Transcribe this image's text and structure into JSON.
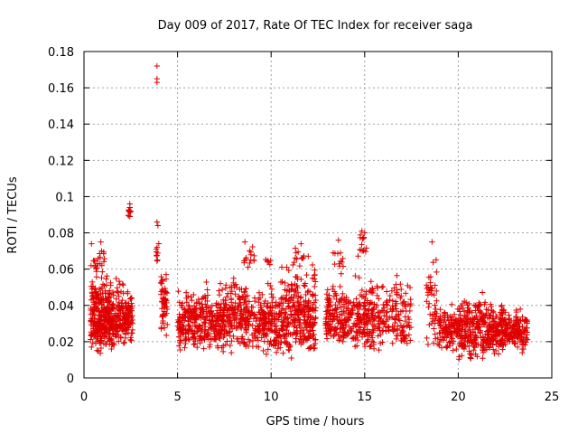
{
  "chart_data": {
    "type": "scatter",
    "title": "Day 009 of 2017, Rate Of TEC Index for receiver saga",
    "xlabel": "GPS time / hours",
    "ylabel": "ROTI / TECUs",
    "xlim": [
      0,
      25
    ],
    "ylim": [
      0,
      0.18
    ],
    "x_ticks": [
      "0",
      "5",
      "10",
      "15",
      "20",
      "25"
    ],
    "y_ticks": [
      "0",
      "0.02",
      "0.04",
      "0.06",
      "0.08",
      "0.1",
      "0.12",
      "0.14",
      "0.16",
      "0.18"
    ],
    "grid": true,
    "marker": "+",
    "color": "#e00000",
    "clusters": [
      {
        "x": [
          0.35,
          1.6
        ],
        "y": [
          0.012,
          0.062
        ],
        "n": 330
      },
      {
        "x": [
          0.35,
          0.9
        ],
        "y": [
          0.055,
          0.074
        ],
        "n": 14
      },
      {
        "x": [
          0.9,
          1.1
        ],
        "y": [
          0.055,
          0.075
        ],
        "n": 6
      },
      {
        "x": [
          1.6,
          2.6
        ],
        "y": [
          0.015,
          0.058
        ],
        "n": 160
      },
      {
        "x": [
          2.35,
          2.55
        ],
        "y": [
          0.088,
          0.097
        ],
        "n": 7
      },
      {
        "x": [
          3.85,
          4.05
        ],
        "y": [
          0.062,
          0.088
        ],
        "n": 9
      },
      {
        "x": [
          4.1,
          4.45
        ],
        "y": [
          0.02,
          0.07
        ],
        "n": 55
      },
      {
        "x": [
          5.0,
          6.3
        ],
        "y": [
          0.013,
          0.052
        ],
        "n": 170
      },
      {
        "x": [
          6.3,
          7.8
        ],
        "y": [
          0.012,
          0.058
        ],
        "n": 200
      },
      {
        "x": [
          7.8,
          9.5
        ],
        "y": [
          0.012,
          0.06
        ],
        "n": 200
      },
      {
        "x": [
          8.5,
          9.1
        ],
        "y": [
          0.058,
          0.075
        ],
        "n": 14
      },
      {
        "x": [
          9.5,
          10.5
        ],
        "y": [
          0.01,
          0.058
        ],
        "n": 140
      },
      {
        "x": [
          9.6,
          10.0
        ],
        "y": [
          0.062,
          0.071
        ],
        "n": 6
      },
      {
        "x": [
          10.5,
          12.4
        ],
        "y": [
          0.009,
          0.07
        ],
        "n": 300
      },
      {
        "x": [
          11.2,
          11.8
        ],
        "y": [
          0.062,
          0.074
        ],
        "n": 10
      },
      {
        "x": [
          12.9,
          14.4
        ],
        "y": [
          0.017,
          0.056
        ],
        "n": 180
      },
      {
        "x": [
          13.3,
          13.9
        ],
        "y": [
          0.055,
          0.077
        ],
        "n": 12
      },
      {
        "x": [
          14.4,
          15.5
        ],
        "y": [
          0.012,
          0.06
        ],
        "n": 150
      },
      {
        "x": [
          14.6,
          15.1
        ],
        "y": [
          0.066,
          0.082
        ],
        "n": 14
      },
      {
        "x": [
          15.5,
          17.5
        ],
        "y": [
          0.013,
          0.06
        ],
        "n": 160
      },
      {
        "x": [
          18.3,
          18.9
        ],
        "y": [
          0.01,
          0.075
        ],
        "n": 45
      },
      {
        "x": [
          18.9,
          20.1
        ],
        "y": [
          0.013,
          0.044
        ],
        "n": 130
      },
      {
        "x": [
          20.0,
          21.6
        ],
        "y": [
          0.007,
          0.055
        ],
        "n": 230
      },
      {
        "x": [
          21.6,
          22.6
        ],
        "y": [
          0.012,
          0.048
        ],
        "n": 150
      },
      {
        "x": [
          22.6,
          23.7
        ],
        "y": [
          0.012,
          0.045
        ],
        "n": 130
      }
    ],
    "outliers": [
      {
        "x": 3.9,
        "y": 0.172
      },
      {
        "x": 3.9,
        "y": 0.165
      },
      {
        "x": 3.9,
        "y": 0.163
      },
      {
        "x": 2.45,
        "y": 0.096
      },
      {
        "x": 2.45,
        "y": 0.094
      },
      {
        "x": 2.5,
        "y": 0.092
      },
      {
        "x": 2.45,
        "y": 0.089
      },
      {
        "x": 3.9,
        "y": 0.086
      },
      {
        "x": 3.95,
        "y": 0.084
      },
      {
        "x": 14.85,
        "y": 0.081
      },
      {
        "x": 15.0,
        "y": 0.08
      },
      {
        "x": 13.6,
        "y": 0.076
      },
      {
        "x": 8.6,
        "y": 0.075
      },
      {
        "x": 18.6,
        "y": 0.075
      },
      {
        "x": 0.9,
        "y": 0.075
      },
      {
        "x": 0.4,
        "y": 0.074
      },
      {
        "x": 11.6,
        "y": 0.074
      }
    ]
  }
}
